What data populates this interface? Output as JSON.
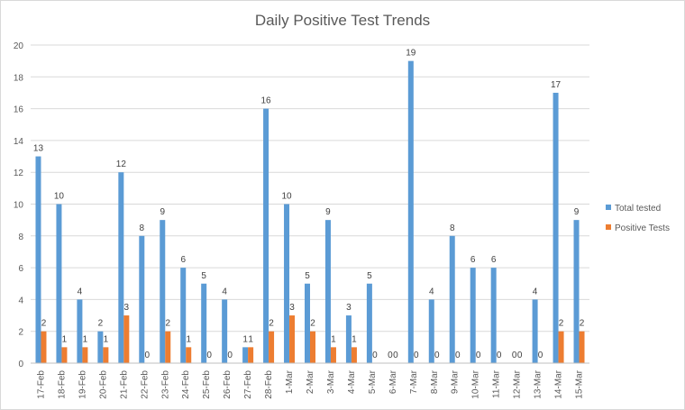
{
  "chart_data": {
    "type": "bar",
    "title": "Daily Positive Test Trends",
    "xlabel": "",
    "ylabel": "",
    "ylim": [
      0,
      20
    ],
    "yticks": [
      0,
      2,
      4,
      6,
      8,
      10,
      12,
      14,
      16,
      18,
      20
    ],
    "grid": true,
    "legend_position": "right",
    "categories": [
      "17-Feb",
      "18-Feb",
      "19-Feb",
      "20-Feb",
      "21-Feb",
      "22-Feb",
      "23-Feb",
      "24-Feb",
      "25-Feb",
      "26-Feb",
      "27-Feb",
      "28-Feb",
      "1-Mar",
      "2-Mar",
      "3-Mar",
      "4-Mar",
      "5-Mar",
      "6-Mar",
      "7-Mar",
      "8-Mar",
      "9-Mar",
      "10-Mar",
      "11-Mar",
      "12-Mar",
      "13-Mar",
      "14-Mar",
      "15-Mar"
    ],
    "series": [
      {
        "name": "Total tested",
        "color": "#5b9bd5",
        "values": [
          13,
          10,
          4,
          2,
          12,
          8,
          9,
          6,
          5,
          4,
          1,
          16,
          10,
          5,
          9,
          3,
          5,
          0,
          19,
          4,
          8,
          6,
          6,
          0,
          4,
          17,
          9
        ]
      },
      {
        "name": "Positive Tests",
        "color": "#ed7d31",
        "values": [
          2,
          1,
          1,
          1,
          3,
          0,
          2,
          1,
          0,
          0,
          1,
          2,
          3,
          2,
          1,
          1,
          0,
          0,
          0,
          0,
          0,
          0,
          0,
          0,
          0,
          2,
          2
        ]
      }
    ]
  }
}
